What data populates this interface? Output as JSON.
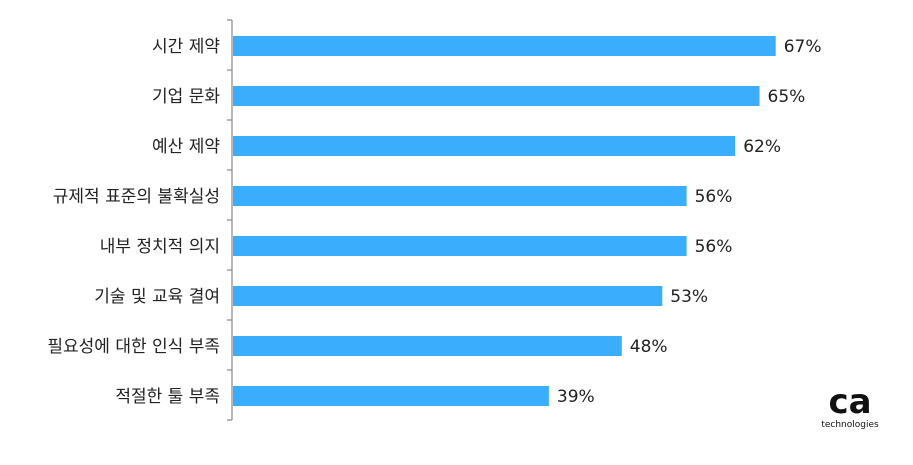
{
  "chart_data": {
    "type": "bar",
    "orientation": "horizontal",
    "categories": [
      "시간 제약",
      "기업 문화",
      "예산 제약",
      "규제적 표준의 불확실성",
      "내부 정치적 의지",
      "기술 및 교육 결여",
      "필요성에 대한 인식 부족",
      "적절한 툴 부족"
    ],
    "values": [
      67,
      65,
      62,
      56,
      56,
      53,
      48,
      39
    ],
    "value_labels": [
      "67%",
      "65%",
      "62%",
      "56%",
      "56%",
      "53%",
      "48%",
      "39%"
    ],
    "unit": "%",
    "xlim": [
      0,
      100
    ],
    "grid": false,
    "legend": "none",
    "bar_color": "#3aaefa"
  },
  "branding": {
    "logo_text": "ca",
    "logo_subtext": "technologies"
  },
  "colors": {
    "bar": "#3aaefa",
    "text": "#222222",
    "axis": "#888888",
    "logo": "#111111"
  }
}
